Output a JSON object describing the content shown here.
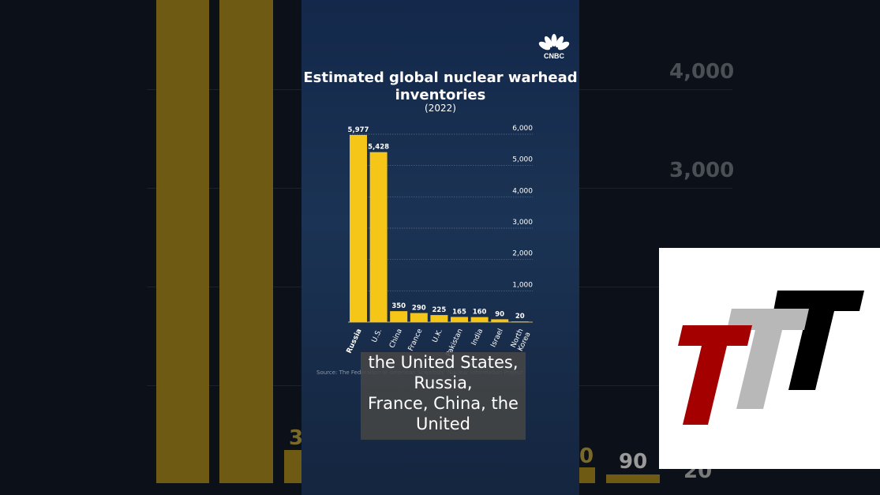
{
  "background": {
    "labels": [
      "4,000",
      "3,000",
      "3",
      "0",
      "90",
      "20"
    ]
  },
  "chart_data": {
    "type": "bar",
    "title": "Estimated global nuclear warhead inventories",
    "subtitle": "(2022)",
    "categories": [
      "Russia",
      "U.S.",
      "China",
      "France",
      "U.K.",
      "Pakistan",
      "India",
      "Israel",
      "North Korea"
    ],
    "values": [
      5977,
      5428,
      350,
      290,
      225,
      165,
      160,
      90,
      20
    ],
    "value_labels": [
      "5,977",
      "5,428",
      "350",
      "290",
      "225",
      "165",
      "160",
      "90",
      "20"
    ],
    "yticks": [
      1000,
      2000,
      3000,
      4000,
      5000,
      6000
    ],
    "ytick_labels": [
      "1,000",
      "2,000",
      "3,000",
      "4,000",
      "5,000",
      "6,000"
    ],
    "ylim": [
      0,
      6000
    ],
    "grid": true,
    "yaxis_side": "right",
    "bar_color": "#f5c518",
    "source": "Source: The Federation of American Scientists' Nuclear Information Project"
  },
  "logo": "CNBC",
  "caption": [
    "the United States,",
    "Russia,",
    "France, China, the",
    "United"
  ],
  "brand_colors": [
    "#a50000",
    "#b8b8b8",
    "#000000"
  ]
}
